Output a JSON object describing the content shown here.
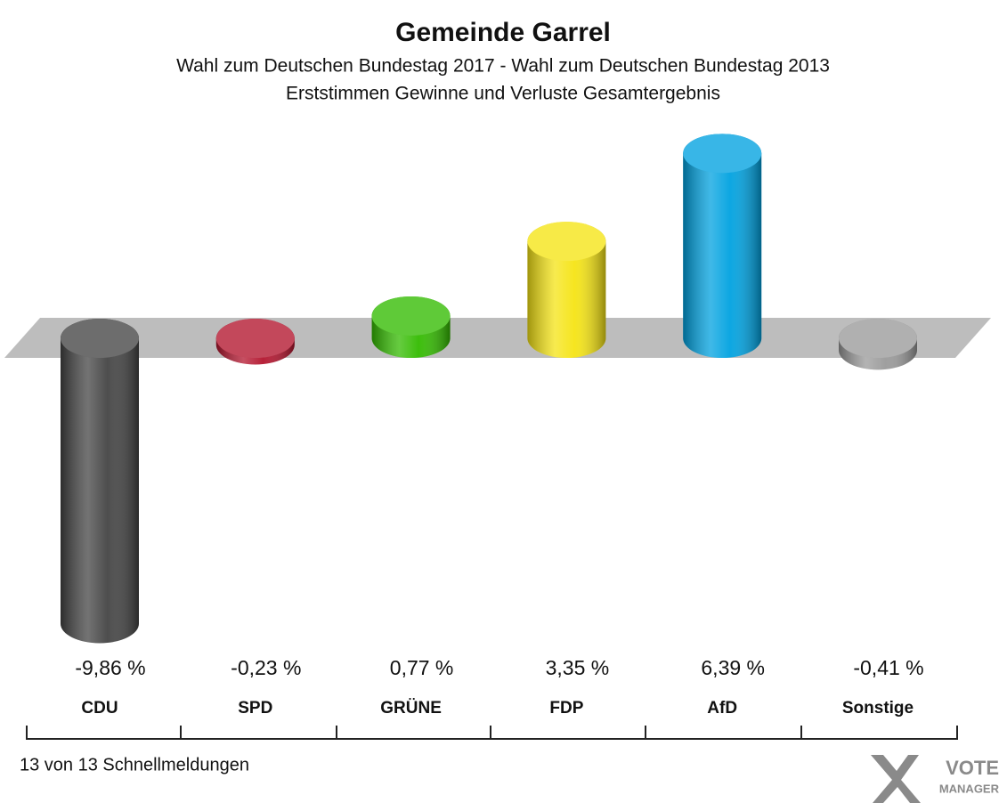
{
  "chart_data": {
    "type": "bar",
    "title": "Gemeinde Garrel",
    "subtitle": [
      "Wahl zum Deutschen Bundestag 2017 - Wahl zum Deutschen Bundestag 2013",
      "Erststimmen Gewinne und Verluste Gesamtergebnis"
    ],
    "categories": [
      "CDU",
      "SPD",
      "GRÜNE",
      "FDP",
      "AfD",
      "Sonstige"
    ],
    "values": [
      -9.86,
      -0.23,
      0.77,
      3.35,
      6.39,
      -0.41
    ],
    "value_labels": [
      "-9,86 %",
      "-0,23 %",
      "0,77 %",
      "3,35 %",
      "6,39 %",
      "-0,41 %"
    ],
    "colors": [
      "#444444",
      "#b3152e",
      "#33bb00",
      "#f5e414",
      "#00a2e0",
      "#9a9a9a"
    ],
    "footnote": "13 von 13 Schnellmeldungen",
    "logo": [
      "VOTE",
      "MANAGER"
    ]
  }
}
